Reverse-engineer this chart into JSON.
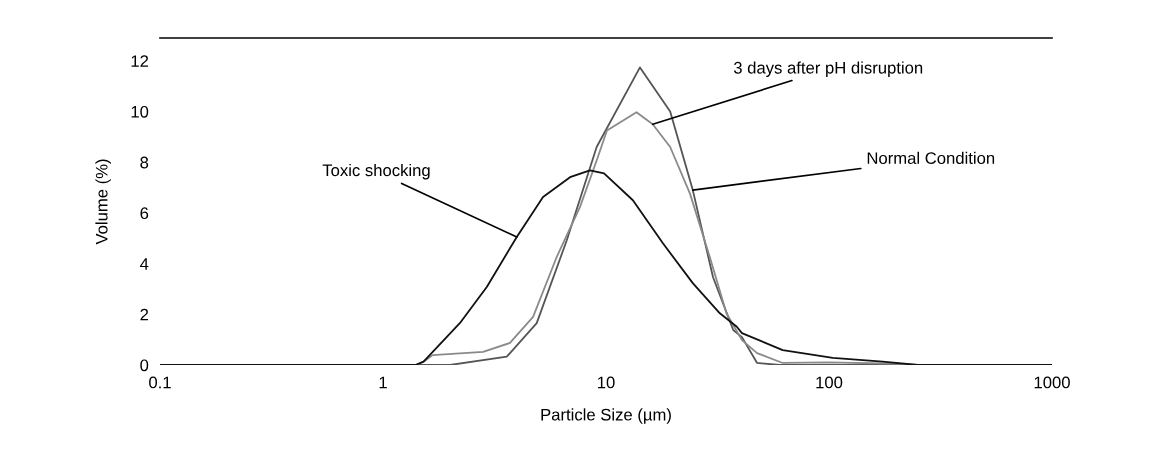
{
  "chart_data": {
    "type": "line",
    "xlabel": "Particle Size (µm)",
    "ylabel": "Volume (%)",
    "log": "x",
    "xlim": [
      0.1,
      1000
    ],
    "xticks": [
      0.1,
      1,
      10,
      100,
      1000
    ],
    "ylim": [
      0,
      12.9
    ],
    "yticks": [
      0,
      2,
      4,
      6,
      8,
      10,
      12
    ],
    "grid": false,
    "marker": "none",
    "line_style": "solid",
    "series": [
      {
        "color": "#555555",
        "x": [
          0.1,
          2.0,
          3.59,
          4.89,
          6.67,
          9.08,
          14.2,
          19.4,
          24.5,
          30.2,
          37.2,
          40.7,
          47.6,
          60,
          1000
        ],
        "values": [
          0,
          0,
          0.33,
          1.65,
          4.92,
          8.6,
          11.74,
          10.0,
          6.9,
          3.46,
          1.38,
          1.1,
          0.08,
          0,
          0
        ]
      },
      {
        "color": "#8a8a8a",
        "x": [
          0.1,
          1.4,
          1.52,
          1.67,
          2.81,
          3.71,
          4.71,
          6.01,
          7.64,
          9.08,
          10.1,
          13.7,
          16.2,
          19.4,
          23.8,
          29.2,
          34.7,
          40.7,
          47.6,
          62,
          100,
          200,
          250,
          1000
        ],
        "values": [
          0,
          0,
          0.13,
          0.39,
          0.52,
          0.87,
          1.9,
          4.26,
          6.23,
          8.07,
          9.25,
          9.97,
          9.5,
          8.6,
          6.76,
          4.26,
          2.04,
          0.98,
          0.47,
          0.08,
          0.1,
          0.05,
          0,
          0
        ]
      },
      {
        "color": "#111111",
        "x": [
          0.1,
          1.4,
          1.52,
          2.21,
          2.92,
          3.98,
          5.22,
          6.9,
          8.47,
          9.8,
          13.2,
          18.0,
          24.5,
          32.4,
          38.6,
          40.7,
          62,
          104,
          174,
          250,
          1000
        ],
        "values": [
          0,
          0,
          0.13,
          1.65,
          3.08,
          5.05,
          6.63,
          7.41,
          7.68,
          7.56,
          6.5,
          4.8,
          3.23,
          2.04,
          1.51,
          1.26,
          0.59,
          0.28,
          0.13,
          0,
          0
        ]
      }
    ],
    "annotations": [
      {
        "text": "Toxic shocking",
        "x": 3.98,
        "y": 5.05
      },
      {
        "text": "3 days after pH disruption",
        "x": 16.2,
        "y": 9.5
      },
      {
        "text": "Normal Condition",
        "x": 24.5,
        "y": 6.9
      }
    ]
  }
}
